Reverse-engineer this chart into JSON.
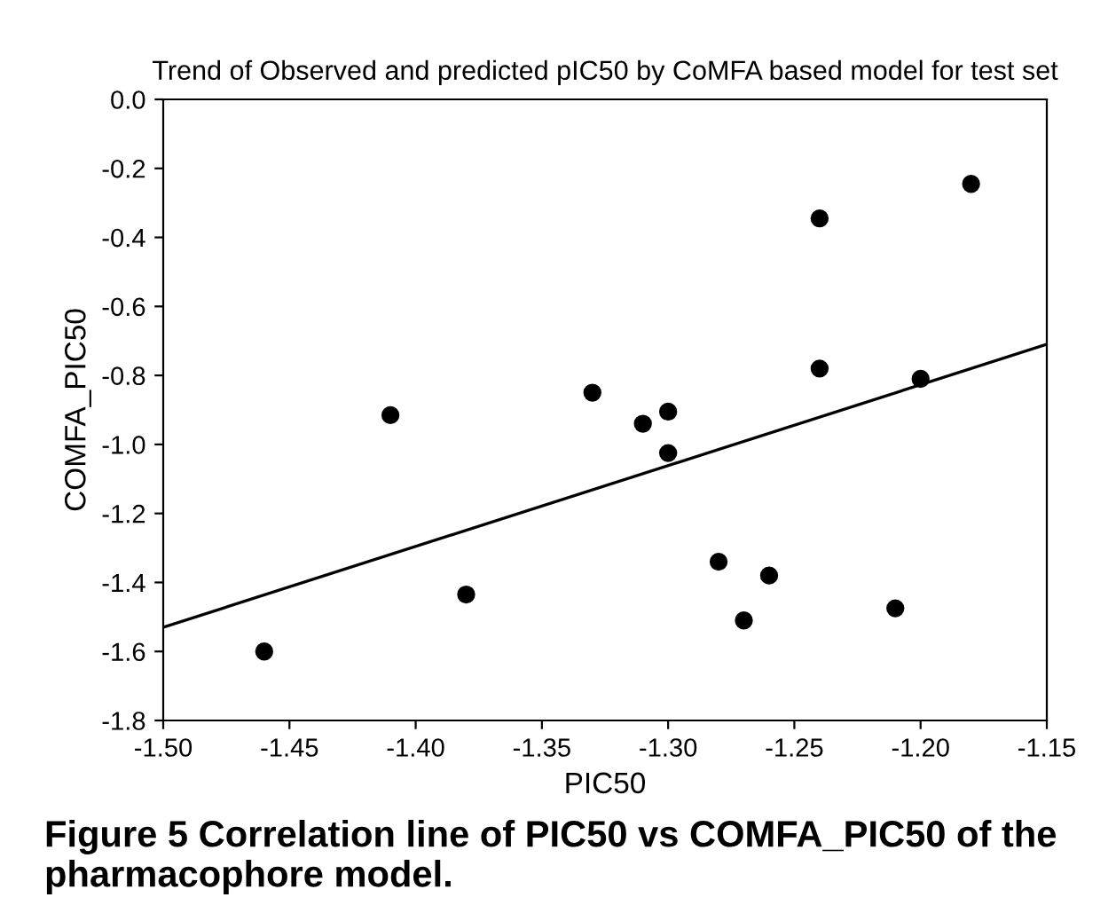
{
  "chart_data": {
    "type": "scatter",
    "title": "Trend of Observed and predicted pIC50 by CoMFA based model for test set",
    "xlabel": "PIC50",
    "ylabel": "COMFA_PIC50",
    "series": [
      {
        "color": "#000000",
        "marker": "circle",
        "x": [
          -1.46,
          -1.41,
          -1.38,
          -1.33,
          -1.31,
          -1.3,
          -1.3,
          -1.28,
          -1.27,
          -1.26,
          -1.24,
          -1.24,
          -1.21,
          -1.2,
          -1.18
        ],
        "values": [
          -1.6,
          -0.915,
          -1.435,
          -0.85,
          -0.94,
          -0.905,
          -1.025,
          -1.34,
          -1.51,
          -1.38,
          -0.345,
          -0.78,
          -1.475,
          -0.81,
          -0.245
        ]
      },
      {
        "type": "line",
        "color": "#000000",
        "x": [
          -1.5,
          -1.15
        ],
        "values": [
          -1.53,
          -0.71
        ]
      }
    ],
    "xlim": [
      -1.5,
      -1.15
    ],
    "xticks": [
      {
        "value": -1.5,
        "label": "-1.50"
      },
      {
        "value": -1.45,
        "label": "-1.45"
      },
      {
        "value": -1.4,
        "label": "-1.40"
      },
      {
        "value": -1.35,
        "label": "-1.35"
      },
      {
        "value": -1.3,
        "label": "-1.30"
      },
      {
        "value": -1.25,
        "label": "-1.25"
      },
      {
        "value": -1.2,
        "label": "-1.20"
      },
      {
        "value": -1.15,
        "label": "-1.15"
      }
    ],
    "ylim": [
      -1.8,
      0.0
    ],
    "yticks": [
      {
        "value": -1.8,
        "label": "-1.8"
      },
      {
        "value": -1.6,
        "label": "-1.6"
      },
      {
        "value": -1.4,
        "label": "-1.4"
      },
      {
        "value": -1.2,
        "label": "-1.2"
      },
      {
        "value": -1.0,
        "label": "-1.0"
      },
      {
        "value": -0.8,
        "label": "-0.8"
      },
      {
        "value": -0.6,
        "label": "-0.6"
      },
      {
        "value": -0.4,
        "label": "-0.4"
      },
      {
        "value": -0.2,
        "label": "-0.2"
      },
      {
        "value": 0.0,
        "label": "0.0"
      }
    ],
    "grid": false,
    "legend": false,
    "annotations": [
      "Figure 5 Correlation line of PIC50 vs COMFA_PIC50 of the pharmacophore model."
    ]
  }
}
